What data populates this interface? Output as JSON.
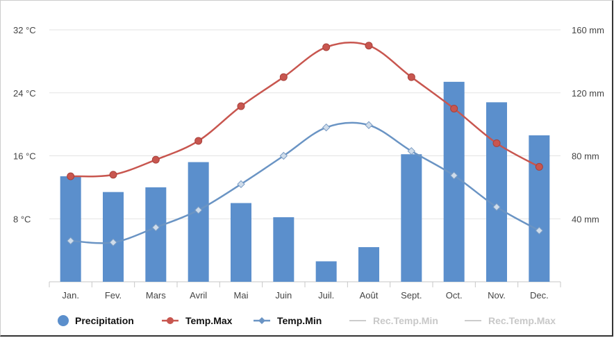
{
  "chart_data": {
    "type": "bar",
    "categories": [
      "Jan.",
      "Fev.",
      "Mars",
      "Avril",
      "Mai",
      "Juin",
      "Juil.",
      "Août",
      "Sept.",
      "Oct.",
      "Nov.",
      "Dec."
    ],
    "left_axis": {
      "ticks": [
        8,
        16,
        24,
        32
      ],
      "tick_labels": [
        "8 °C",
        "16 °C",
        "24 °C",
        "32 °C"
      ],
      "range": [
        0,
        32
      ]
    },
    "right_axis": {
      "ticks": [
        40,
        80,
        120,
        160
      ],
      "tick_labels": [
        "40 mm",
        "80 mm",
        "120 mm",
        "160 mm"
      ],
      "range": [
        0,
        160
      ]
    },
    "series": [
      {
        "name": "Precipitation",
        "kind": "bar",
        "axis": "right",
        "color": "#5b8fcc",
        "values": [
          67,
          57,
          60,
          76,
          50,
          41,
          13,
          22,
          81,
          127,
          114,
          93
        ]
      },
      {
        "name": "Temp.Max",
        "kind": "line",
        "axis": "left",
        "color": "#c8564f",
        "values": [
          13.4,
          13.6,
          15.5,
          17.9,
          22.3,
          26.0,
          29.8,
          30.0,
          26.0,
          22.0,
          17.6,
          14.6
        ]
      },
      {
        "name": "Temp.Min",
        "kind": "line",
        "axis": "left",
        "color": "#6a94c4",
        "values": [
          5.2,
          5.0,
          6.9,
          9.1,
          12.4,
          16.0,
          19.6,
          19.9,
          16.6,
          13.5,
          9.5,
          6.5
        ]
      }
    ],
    "legend": [
      {
        "label": "Precipitation",
        "marker": "circle",
        "color": "#5b8fcc",
        "active": true
      },
      {
        "label": "Temp.Max",
        "marker": "line-circle",
        "color": "#c8564f",
        "active": true
      },
      {
        "label": "Temp.Min",
        "marker": "line-diamond",
        "color": "#6a94c4",
        "active": true
      },
      {
        "label": "Rec.Temp.Min",
        "marker": "line",
        "color": "#cccccc",
        "active": false
      },
      {
        "label": "Rec.Temp.Max",
        "marker": "line",
        "color": "#cccccc",
        "active": false
      }
    ],
    "legend_position": "bottom",
    "grid": true
  }
}
